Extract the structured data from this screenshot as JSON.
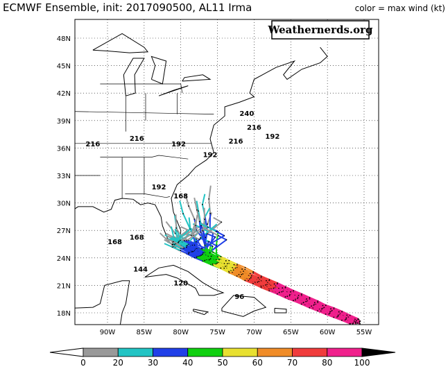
{
  "header": {
    "title": "ECMWF Ensemble, init: 2017090500, AL11 Irma",
    "legend_note": "color = max wind (kt)",
    "logo": "Weathernerds.org"
  },
  "map": {
    "lat_labels": [
      "48N",
      "45N",
      "42N",
      "39N",
      "36N",
      "33N",
      "30N",
      "27N",
      "24N",
      "21N",
      "18N"
    ],
    "lon_labels": [
      "90W",
      "85W",
      "80W",
      "75W",
      "70W",
      "65W",
      "60W",
      "55W"
    ],
    "hour_labels": [
      "240",
      "216",
      "216",
      "216",
      "216",
      "192",
      "192",
      "192",
      "192",
      "168",
      "168",
      "168",
      "144",
      "120",
      "96"
    ]
  },
  "colorbar": {
    "ticks": [
      0,
      20,
      30,
      40,
      50,
      60,
      70,
      80,
      100
    ],
    "colors": [
      "#ffffff",
      "#999999",
      "#22c4c4",
      "#2040e8",
      "#10d010",
      "#e8e030",
      "#f08c28",
      "#f03c3c",
      "#f0208c",
      "#000000"
    ]
  }
}
